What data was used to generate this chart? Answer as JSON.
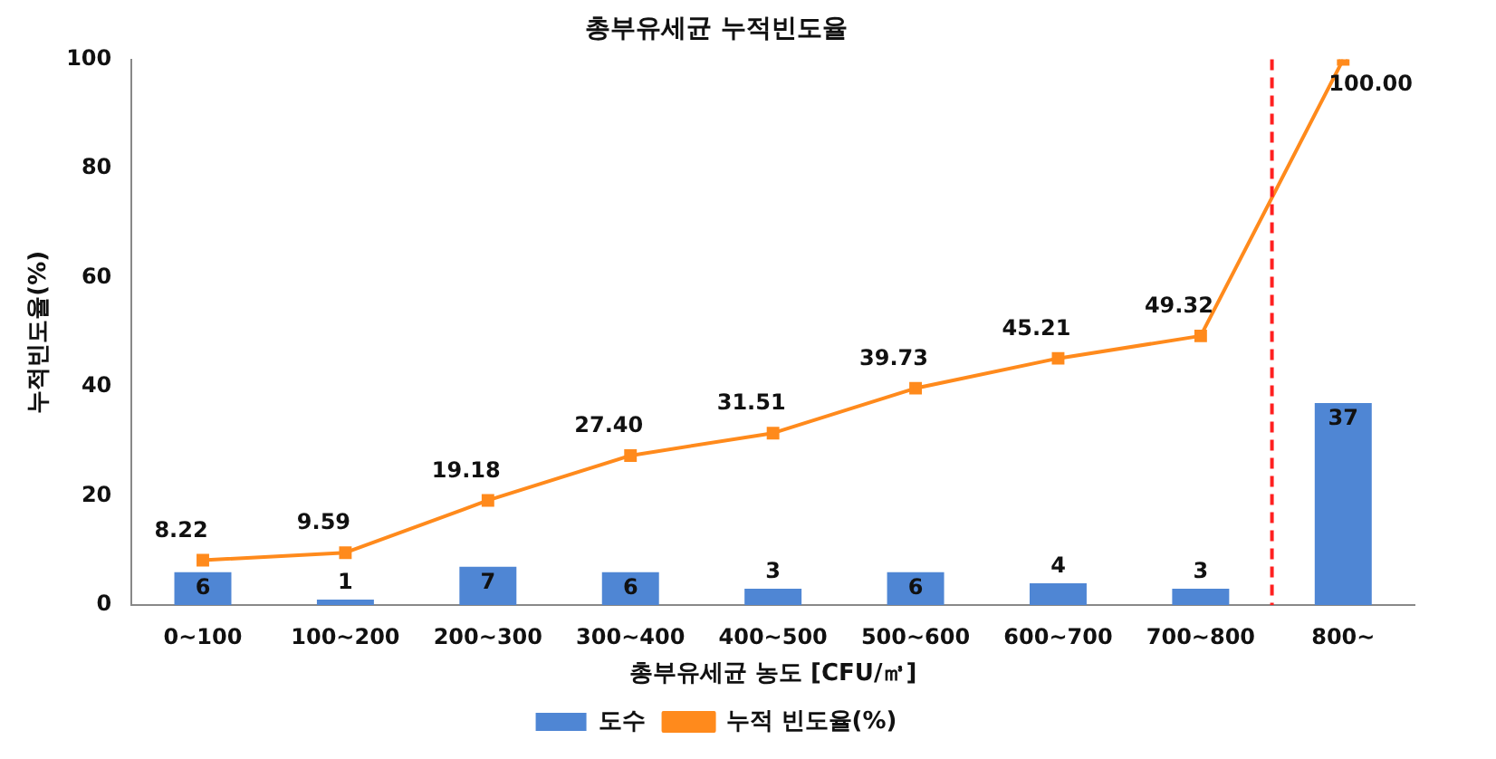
{
  "chart_data": {
    "type": "bar",
    "title": "총부유세균 누적빈도율",
    "xlabel": "총부유세균 농도 [CFU/㎥]",
    "ylabel": "누적빈도율(%)",
    "categories": [
      "0~100",
      "100~200",
      "200~300",
      "300~400",
      "400~500",
      "500~600",
      "600~700",
      "700~800",
      "800~"
    ],
    "series": [
      {
        "name": "도수",
        "color": "#4f86d4",
        "values": [
          6,
          1,
          7,
          6,
          3,
          6,
          4,
          3,
          37
        ],
        "value_labels": [
          "6",
          "1",
          "7",
          "6",
          "3",
          "6",
          "4",
          "3",
          "37"
        ]
      },
      {
        "name": "누적 빈도율(%)",
        "type": "line",
        "color": "#ff8a1c",
        "marker": "square",
        "values": [
          8.22,
          9.59,
          19.18,
          27.4,
          31.51,
          39.73,
          45.21,
          49.32,
          100.0
        ],
        "value_labels": [
          "8.22",
          "9.59",
          "19.18",
          "27.40",
          "31.51",
          "39.73",
          "45.21",
          "49.32",
          "100.00"
        ]
      }
    ],
    "ylim": [
      0,
      100
    ],
    "yticks": [
      0,
      20,
      40,
      60,
      80,
      100
    ],
    "grid": false,
    "legend": "bottom",
    "ref_lines": [
      {
        "axis": "x",
        "value": "800~",
        "color": "#ff2020",
        "line_style": "dashed"
      }
    ]
  }
}
